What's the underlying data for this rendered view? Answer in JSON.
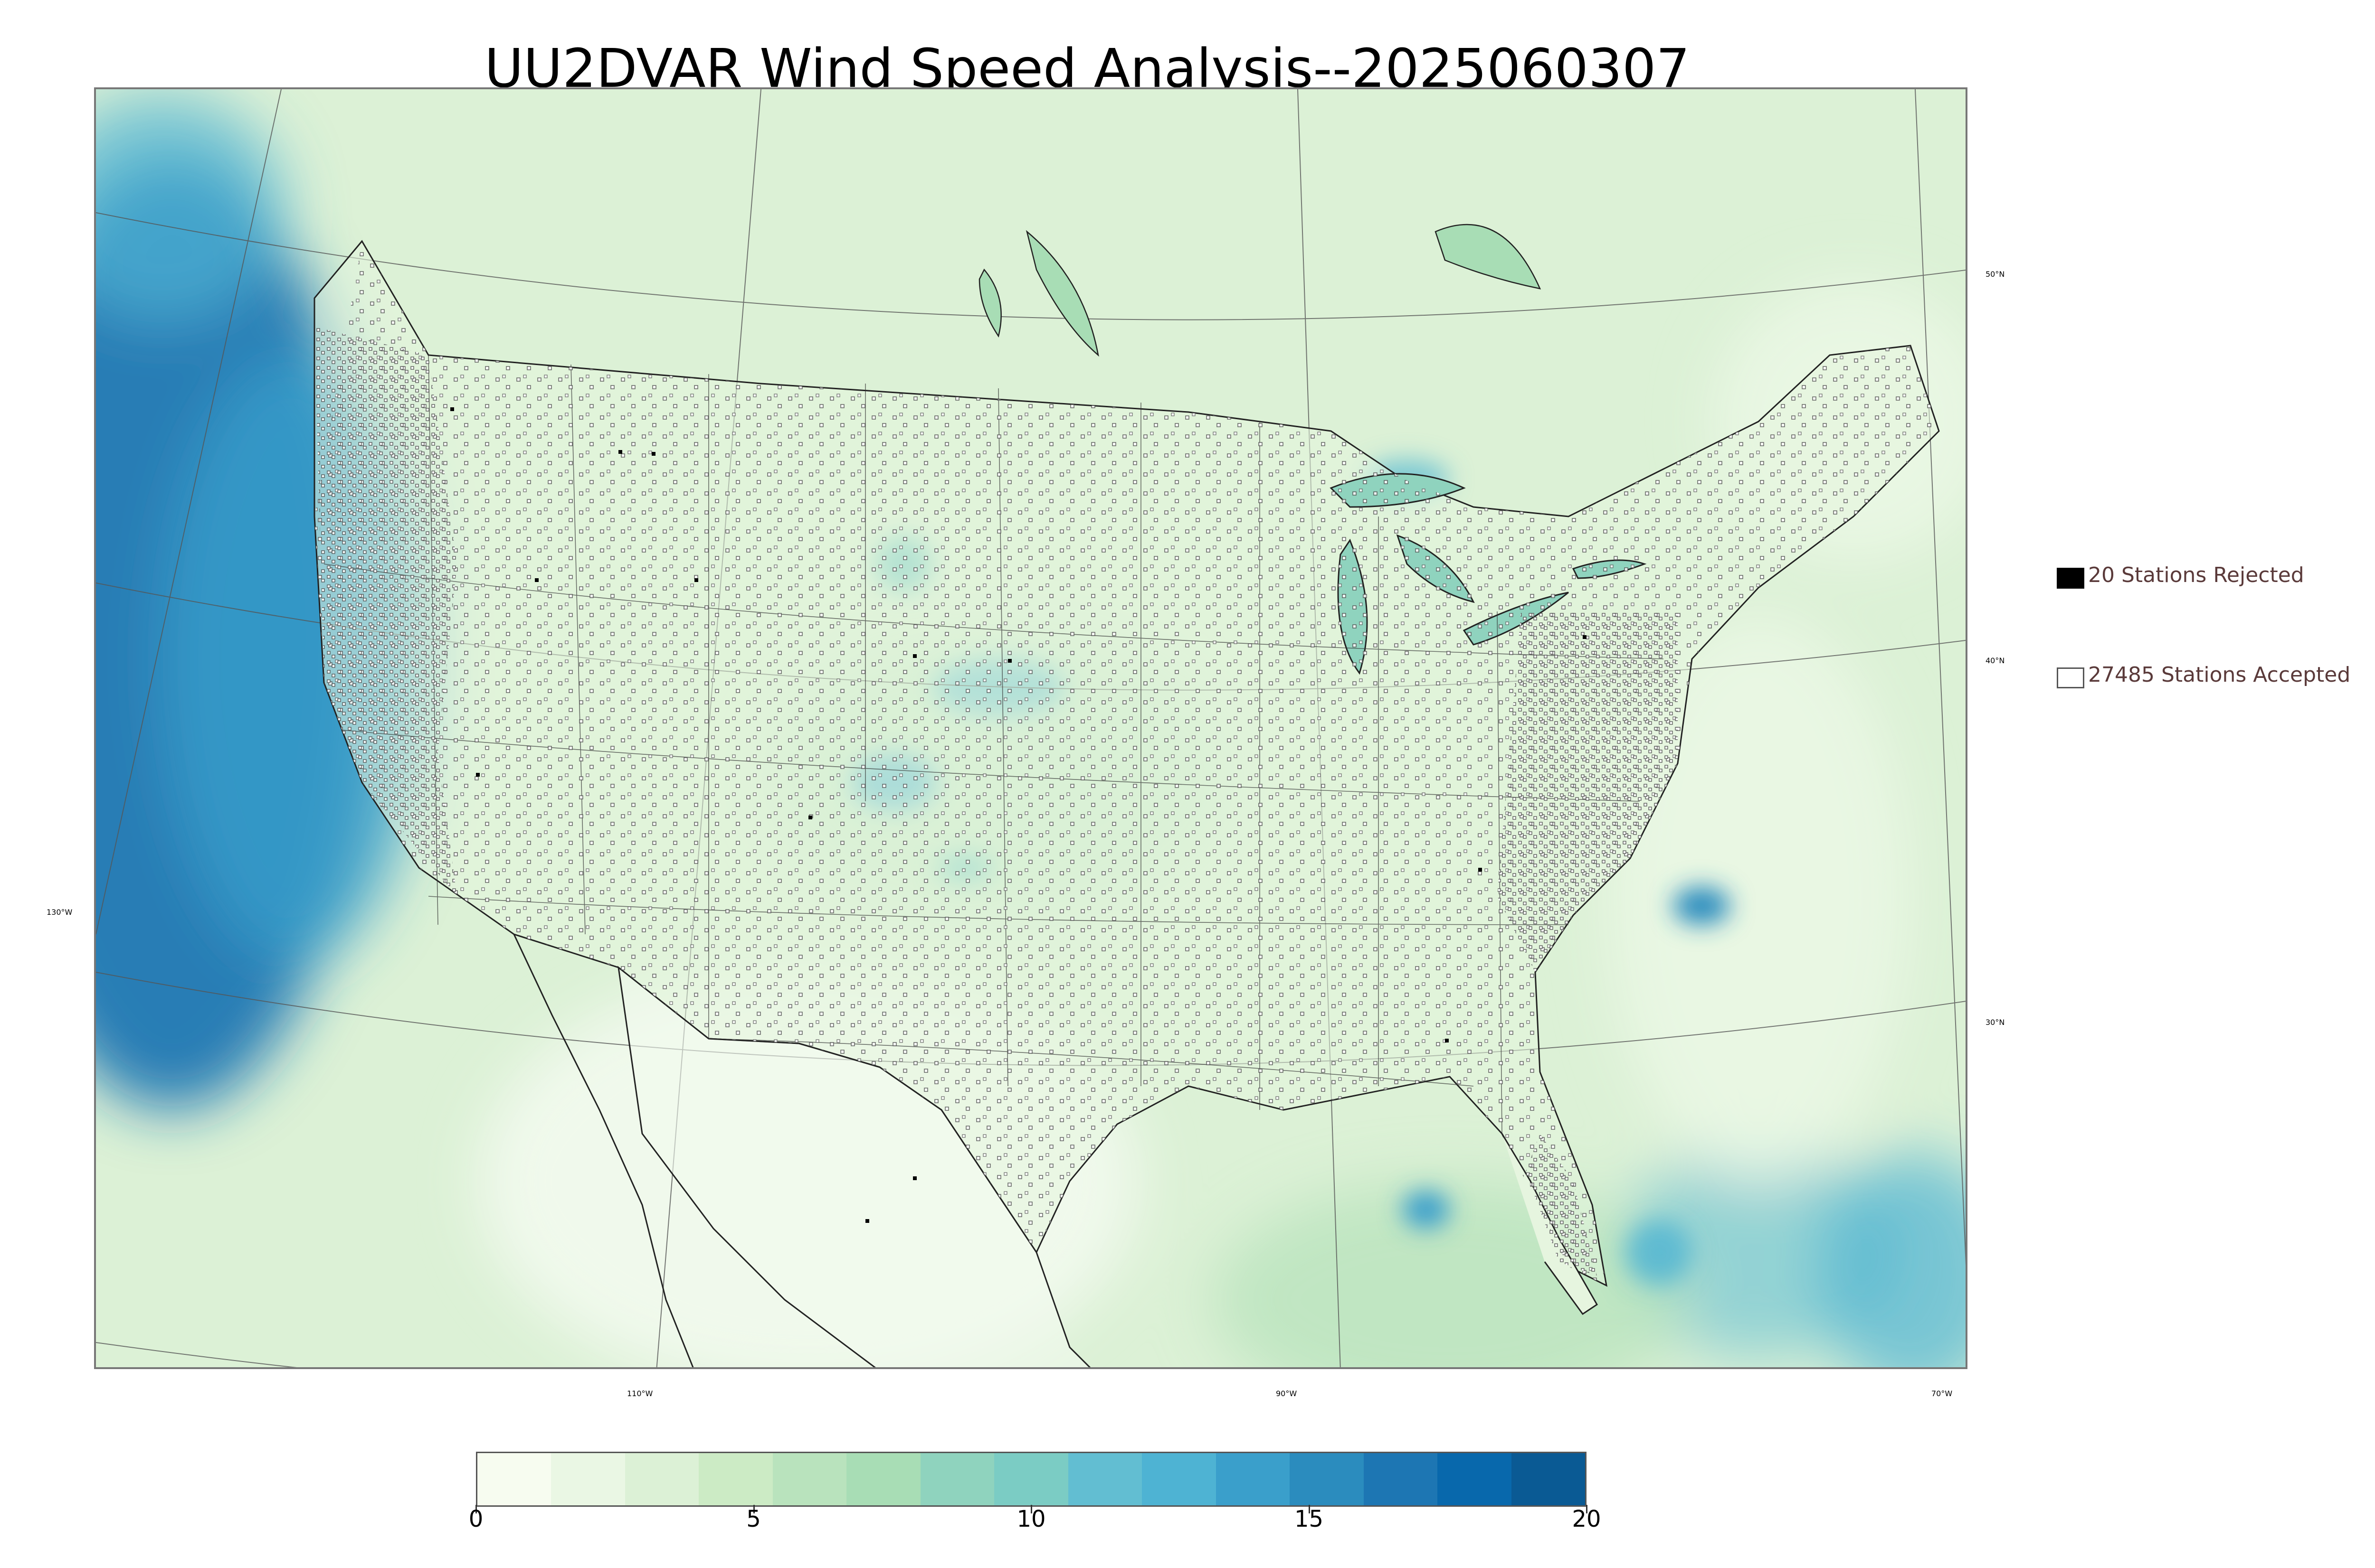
{
  "title": "UU2DVAR Wind Speed Analysis--2025060307",
  "map": {
    "variable": "wind speed",
    "colormap": "GnBu",
    "lat_labels": [
      "50°N",
      "40°N",
      "30°N"
    ],
    "lon_labels": [
      "130°W",
      "110°W",
      "90°W",
      "70°W"
    ]
  },
  "legend": {
    "rejected": {
      "label": "20 Stations Rejected",
      "color": "#000000"
    },
    "accepted": {
      "label": "27485 Stations Accepted",
      "color": "#ffffff"
    }
  },
  "colorbar": {
    "min": 0,
    "max": 20,
    "ticks": [
      "0",
      "5",
      "10",
      "15",
      "20"
    ],
    "colors": [
      "#f7fcf0",
      "#eaf7e4",
      "#dcf1d6",
      "#ccebc5",
      "#b9e3bd",
      "#a8ddb5",
      "#8fd3be",
      "#7bccc4",
      "#62bed2",
      "#4eb3d3",
      "#3a9fcb",
      "#2b8cbe",
      "#1d76b3",
      "#0868ac",
      "#0a5a94"
    ]
  }
}
